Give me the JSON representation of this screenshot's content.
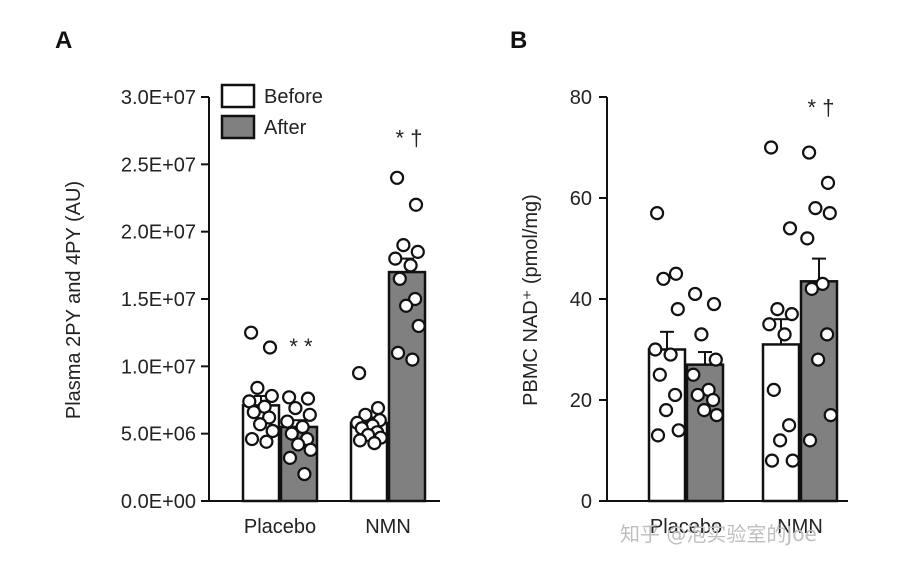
{
  "colors": {
    "before": "#ffffff",
    "after": "#808080",
    "stroke": "#111111",
    "watermark": "#bfbfbf"
  },
  "watermark": "知乎 @泡实验室的Joe",
  "chart_data": [
    {
      "panel": "A",
      "type": "bar",
      "ylabel": "Plasma 2PY and 4PY (AU)",
      "ylim": [
        0,
        30000000
      ],
      "yticks": [
        0,
        5000000,
        10000000,
        15000000,
        20000000,
        25000000,
        30000000
      ],
      "ytick_labels": [
        "0.0E+00",
        "5.0E+06",
        "1.0E+07",
        "1.5E+07",
        "2.0E+07",
        "2.5E+07",
        "3.0E+07"
      ],
      "categories": [
        "Placebo",
        "NMN"
      ],
      "legend": {
        "position": "top-left",
        "entries": [
          "Before",
          "After"
        ]
      },
      "series": [
        {
          "name": "Before",
          "values": [
            7100000,
            5800000
          ],
          "errors": [
            700000,
            400000
          ],
          "points": [
            [
              12500000,
              11400000,
              8400000,
              7800000,
              7400000,
              7000000,
              6600000,
              6200000,
              5700000,
              5200000,
              4600000,
              4400000
            ],
            [
              9500000,
              6900000,
              6400000,
              6000000,
              5800000,
              5600000,
              5400000,
              5100000,
              4900000,
              4700000,
              4500000,
              4300000
            ]
          ]
        },
        {
          "name": "After",
          "values": [
            5500000,
            17000000
          ],
          "errors": [
            500000,
            1000000
          ],
          "points": [
            [
              7700000,
              7600000,
              6900000,
              6400000,
              5900000,
              5500000,
              5000000,
              4600000,
              4200000,
              3800000,
              3200000,
              2000000
            ],
            [
              24000000,
              22000000,
              19000000,
              18500000,
              18000000,
              17500000,
              16500000,
              15000000,
              14500000,
              13000000,
              11000000,
              10500000
            ]
          ]
        }
      ],
      "annotations": [
        {
          "category": "Placebo",
          "series": "After",
          "text": "* *",
          "y": 11500000
        },
        {
          "category": "NMN",
          "series": "After",
          "text": "* †",
          "y": 27000000
        }
      ]
    },
    {
      "panel": "B",
      "type": "bar",
      "ylabel": "PBMC NAD⁺ (pmol/mg)",
      "ylim": [
        0,
        80
      ],
      "yticks": [
        0,
        20,
        40,
        60,
        80
      ],
      "ytick_labels": [
        "0",
        "20",
        "40",
        "60",
        "80"
      ],
      "categories": [
        "Placebo",
        "NMN"
      ],
      "series": [
        {
          "name": "Before",
          "values": [
            30,
            31
          ],
          "errors": [
            3.5,
            5
          ],
          "points": [
            [
              57,
              45,
              44,
              38,
              30,
              29,
              25,
              21,
              18,
              14,
              13
            ],
            [
              70,
              54,
              38,
              37,
              35,
              33,
              22,
              15,
              12,
              8,
              8
            ]
          ]
        },
        {
          "name": "After",
          "values": [
            27,
            43.5
          ],
          "errors": [
            2.5,
            4.5
          ],
          "points": [
            [
              41,
              39,
              33,
              28,
              25,
              22,
              21,
              20,
              18,
              17
            ],
            [
              69,
              63,
              58,
              57,
              52,
              43,
              42,
              33,
              28,
              17,
              12
            ]
          ]
        }
      ],
      "annotations": [
        {
          "category": "NMN",
          "series": "After",
          "text": "* †",
          "y": 78
        }
      ]
    }
  ]
}
